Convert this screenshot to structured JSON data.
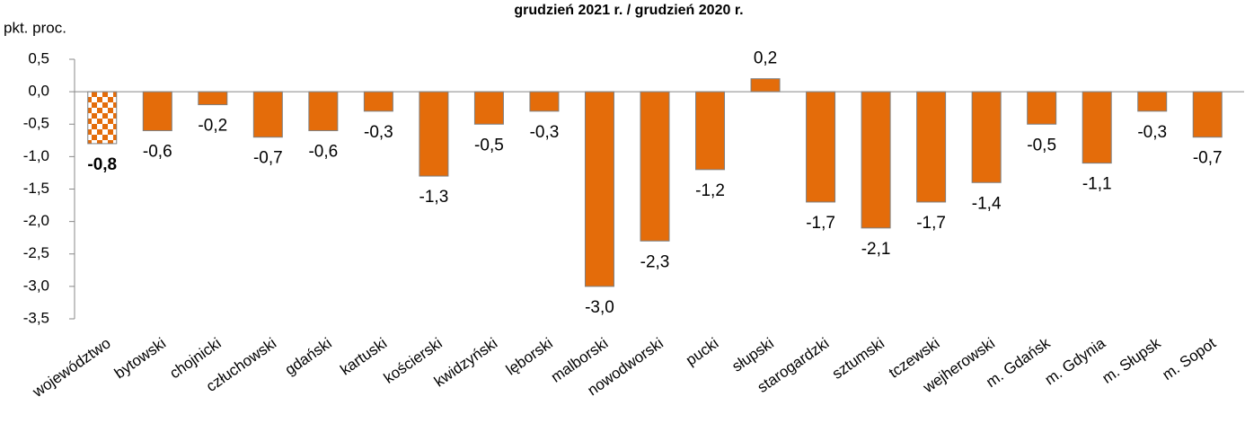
{
  "chart_data": {
    "type": "bar",
    "title": "grudzień 2021 r. / grudzień 2020 r.",
    "y_axis_label": "pkt. proc.",
    "categories": [
      "województwo",
      "bytowski",
      "chojnicki",
      "człuchowski",
      "gdański",
      "kartuski",
      "kościerski",
      "kwidzyński",
      "lęborski",
      "malborski",
      "nowodworski",
      "pucki",
      "słupski",
      "starogardzki",
      "sztumski",
      "tczewski",
      "wejherowski",
      "m. Gdańsk",
      "m. Gdynia",
      "m. Słupsk",
      "m. Sopot"
    ],
    "values": [
      -0.8,
      -0.6,
      -0.2,
      -0.7,
      -0.6,
      -0.3,
      -1.3,
      -0.5,
      -0.3,
      -3.0,
      -2.3,
      -1.2,
      0.2,
      -1.7,
      -2.1,
      -1.7,
      -1.4,
      -0.5,
      -1.1,
      -0.3,
      -0.7
    ],
    "value_labels": [
      "-0,8",
      "-0,6",
      "-0,2",
      "-0,7",
      "-0,6",
      "-0,3",
      "-1,3",
      "-0,5",
      "-0,3",
      "-3,0",
      "-2,3",
      "-1,2",
      "0,2",
      "-1,7",
      "-2,1",
      "-1,7",
      "-1,4",
      "-0,5",
      "-1,1",
      "-0,3",
      "-0,7"
    ],
    "color": "#E46C0A",
    "ylim": [
      -3.5,
      0.5
    ],
    "yticks": [
      {
        "value": 0.5,
        "label": "0,5"
      },
      {
        "value": 0.0,
        "label": "0,0"
      },
      {
        "value": -0.5,
        "label": "-0,5"
      },
      {
        "value": -1.0,
        "label": "-1,0"
      },
      {
        "value": -1.5,
        "label": "-1,5"
      },
      {
        "value": -2.0,
        "label": "-2,0"
      },
      {
        "value": -2.5,
        "label": "-2,5"
      },
      {
        "value": -3.0,
        "label": "-3,0"
      },
      {
        "value": -3.5,
        "label": "-3,5"
      }
    ],
    "grid": false
  }
}
